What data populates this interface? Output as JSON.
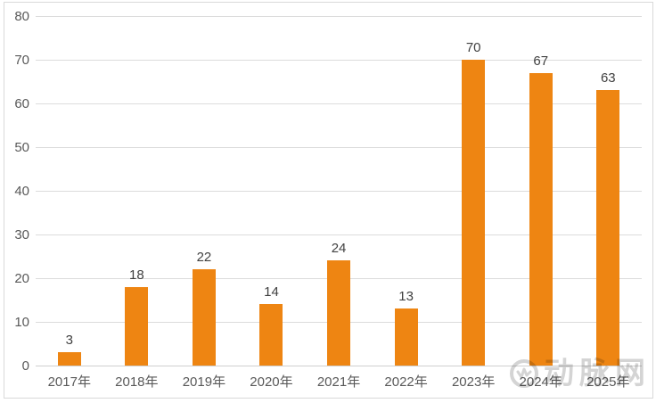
{
  "chart_data": {
    "type": "bar",
    "title": "",
    "xlabel": "",
    "ylabel": "",
    "categories": [
      "2017年",
      "2018年",
      "2019年",
      "2020年",
      "2021年",
      "2022年",
      "2023年",
      "2024年",
      "2025年"
    ],
    "values": [
      3,
      18,
      22,
      14,
      24,
      13,
      70,
      67,
      63
    ],
    "ylim": [
      0,
      80
    ],
    "ytick_interval": 10,
    "ytick_labels": [
      "0",
      "10",
      "20",
      "30",
      "40",
      "50",
      "60",
      "70",
      "80"
    ],
    "grid": "horizontal",
    "legend": "none",
    "data_labels": "above-bars",
    "bar_color": "#ee8512",
    "gridline_color": "#dcdcdc",
    "axis_text_color": "#595959",
    "data_label_color": "#404040"
  },
  "watermark": {
    "text": "动脉网",
    "icon": "vcbeat-logo-icon",
    "color": "#d4d4d4"
  }
}
